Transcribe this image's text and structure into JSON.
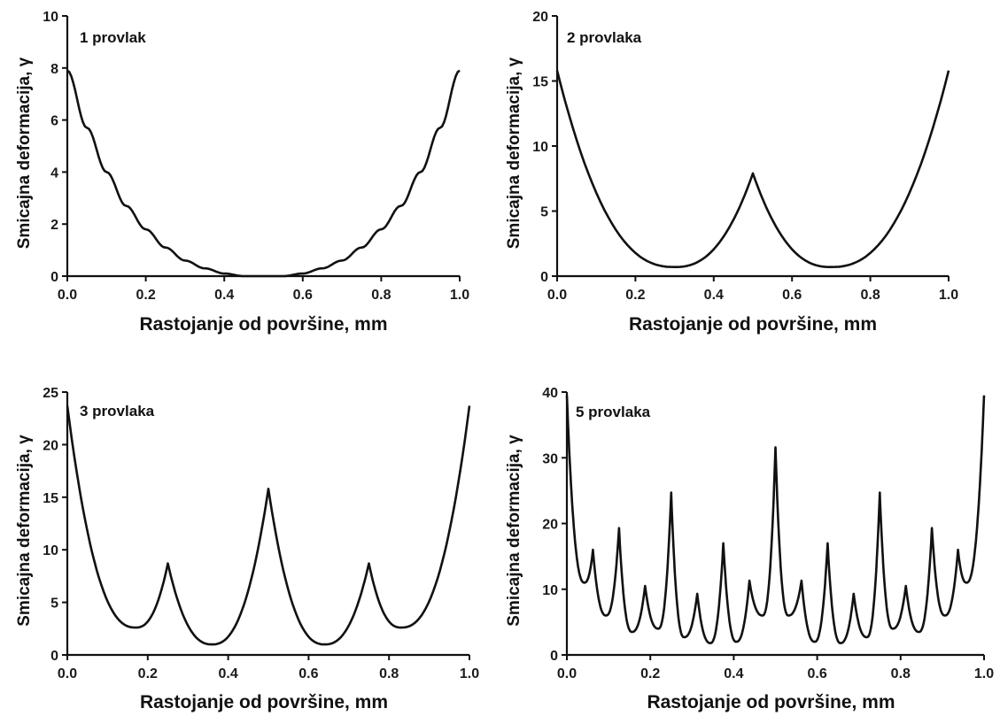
{
  "chart_data": [
    {
      "type": "line",
      "title": "1 provlak",
      "xlabel": "Rastojanje od površine, mm",
      "ylabel": "Smicajna deformacija, γ",
      "xlim": [
        0.0,
        1.0
      ],
      "ylim": [
        0,
        10
      ],
      "xticks": [
        "0.0",
        "0.2",
        "0.4",
        "0.6",
        "0.8",
        "1.0"
      ],
      "yticks": [
        "0",
        "2",
        "4",
        "6",
        "8",
        "10"
      ],
      "series": [
        {
          "x": [
            0.0,
            0.05,
            0.1,
            0.15,
            0.2,
            0.25,
            0.3,
            0.35,
            0.4,
            0.45,
            0.5,
            0.55,
            0.6,
            0.65,
            0.7,
            0.75,
            0.8,
            0.85,
            0.9,
            0.95,
            1.0
          ],
          "values": [
            7.9,
            5.7,
            4.0,
            2.7,
            1.8,
            1.1,
            0.6,
            0.3,
            0.1,
            0.0,
            0.0,
            0.0,
            0.1,
            0.3,
            0.6,
            1.1,
            1.8,
            2.7,
            4.0,
            5.7,
            7.9
          ]
        }
      ],
      "grid": false
    },
    {
      "type": "line",
      "title": "2 provlaka",
      "xlabel": "Rastojanje od površine, mm",
      "ylabel": "Smicajna deformacija, γ",
      "xlim": [
        0.0,
        1.0
      ],
      "ylim": [
        0,
        20
      ],
      "xticks": [
        "0.0",
        "0.2",
        "0.4",
        "0.6",
        "0.8",
        "1.0"
      ],
      "yticks": [
        "0",
        "5",
        "10",
        "15",
        "20"
      ],
      "series": [
        {
          "x": [
            0.0,
            0.3,
            0.5,
            0.7,
            1.0
          ],
          "values": [
            15.8,
            0.7,
            7.9,
            0.7,
            15.8
          ]
        }
      ],
      "grid": false
    },
    {
      "type": "line",
      "title": "3 provlaka",
      "xlabel": "Rastojanje od površine, mm",
      "ylabel": "Smicajna deformacija, γ",
      "xlim": [
        0.0,
        1.0
      ],
      "ylim": [
        0,
        25
      ],
      "xticks": [
        "0.0",
        "0.2",
        "0.4",
        "0.6",
        "0.8",
        "1.0"
      ],
      "yticks": [
        "0",
        "5",
        "10",
        "15",
        "20",
        "25"
      ],
      "series": [
        {
          "x": [
            0.0,
            0.17,
            0.25,
            0.36,
            0.5,
            0.64,
            0.75,
            0.83,
            1.0
          ],
          "values": [
            23.7,
            2.6,
            8.7,
            1.0,
            15.8,
            1.0,
            8.7,
            2.6,
            23.7
          ]
        }
      ],
      "grid": false
    },
    {
      "type": "line",
      "title": "5 provlaka",
      "xlabel": "Rastojanje od površine, mm",
      "ylabel": "Smicajna deformacija, γ",
      "xlim": [
        0.0,
        1.0
      ],
      "ylim": [
        0,
        40
      ],
      "xticks": [
        "0.0",
        "0.2",
        "0.4",
        "0.6",
        "0.8",
        "1.0"
      ],
      "yticks": [
        "0",
        "10",
        "20",
        "30",
        "40"
      ],
      "series": [
        {
          "x": [
            0.0,
            0.0625,
            0.125,
            0.1875,
            0.25,
            0.3125,
            0.375,
            0.4375,
            0.5,
            0.5625,
            0.625,
            0.6875,
            0.75,
            0.8125,
            0.875,
            0.9375,
            1.0
          ],
          "values": [
            39.5,
            16.0,
            19.3,
            10.5,
            24.7,
            9.3,
            17.0,
            11.3,
            31.6,
            11.3,
            17.0,
            9.3,
            24.7,
            10.5,
            19.3,
            16.0,
            39.5
          ]
        },
        {
          "x": [
            0.042,
            0.094,
            0.156,
            0.219,
            0.281,
            0.344,
            0.406,
            0.469,
            0.531,
            0.594,
            0.656,
            0.719,
            0.781,
            0.844,
            0.906,
            0.958
          ],
          "values": [
            11.0,
            6.0,
            3.5,
            4.0,
            2.7,
            1.8,
            2.0,
            6.0,
            6.0,
            2.0,
            1.8,
            2.7,
            4.0,
            3.5,
            6.0,
            11.0
          ]
        }
      ],
      "grid": false
    }
  ]
}
